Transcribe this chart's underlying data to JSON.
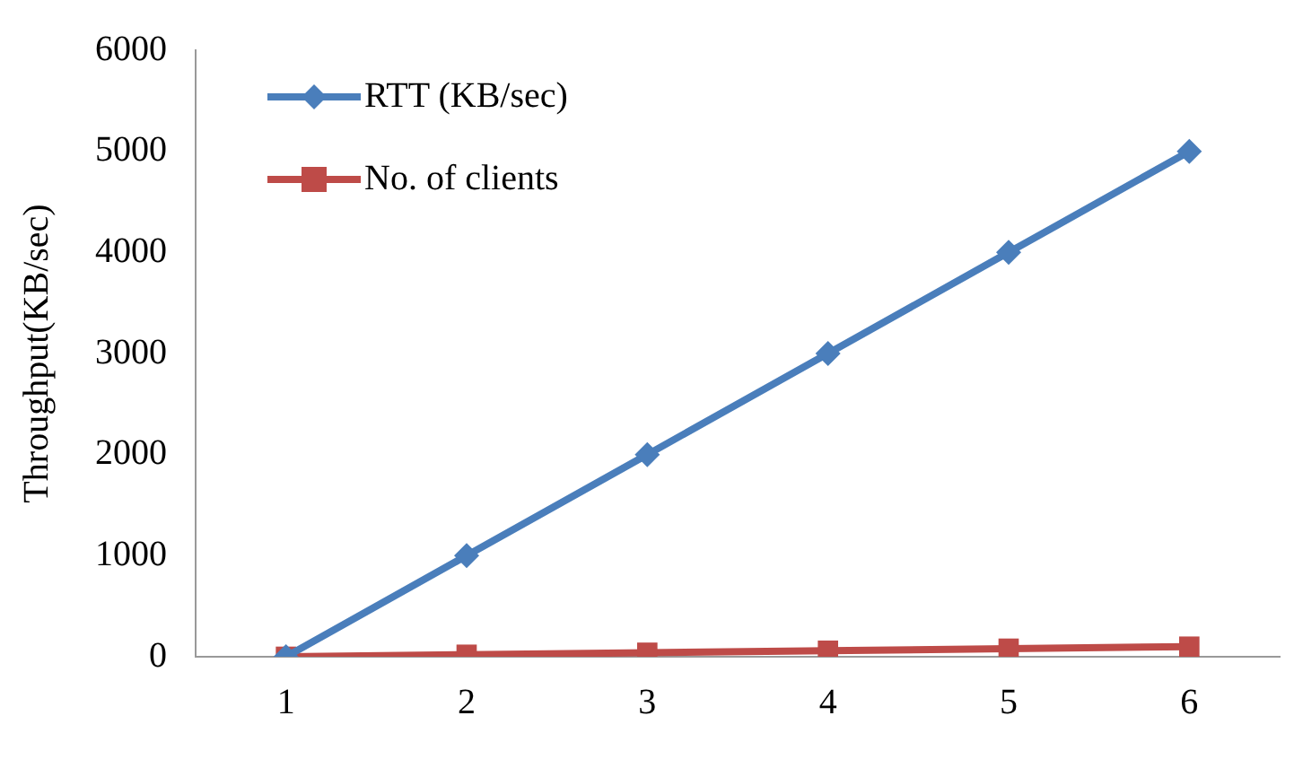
{
  "chart_data": {
    "type": "line",
    "ylabel": "Throughput(KB/sec)",
    "categories": [
      "1",
      "2",
      "3",
      "4",
      "5",
      "6"
    ],
    "series": [
      {
        "name": "RTT (KB/sec)",
        "color": "#4a7ebb",
        "marker": "diamond",
        "values": [
          0,
          1000,
          2000,
          3000,
          4000,
          5000
        ]
      },
      {
        "name": "No. of clients",
        "color": "#be4b48",
        "marker": "square",
        "values": [
          0,
          20,
          40,
          60,
          80,
          100
        ]
      }
    ],
    "ylim": [
      0,
      6000
    ],
    "yticks": [
      0,
      1000,
      2000,
      3000,
      4000,
      5000,
      6000
    ],
    "grid": false,
    "legend": "top left",
    "line_style": "solid"
  }
}
